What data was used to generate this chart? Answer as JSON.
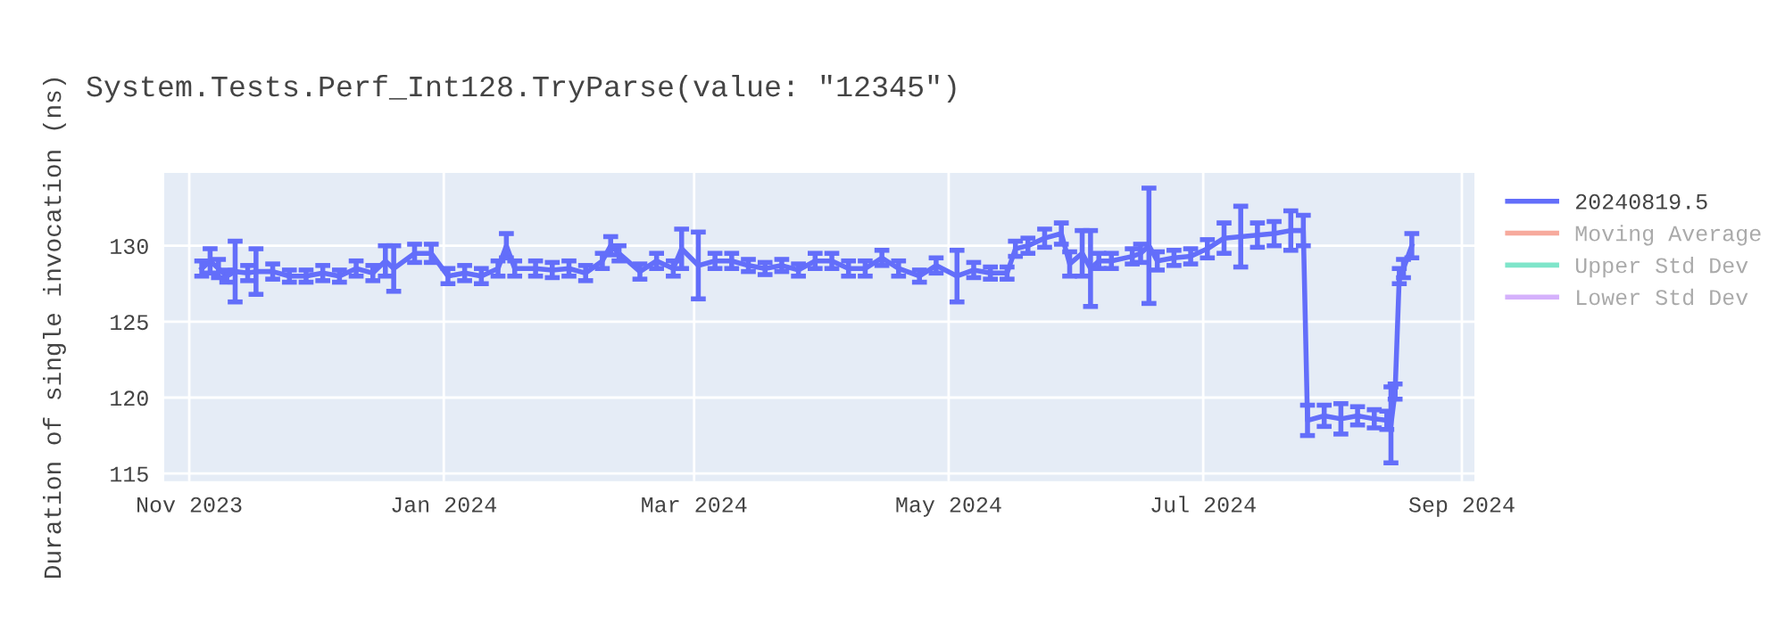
{
  "chart_data": {
    "type": "line",
    "title": "System.Tests.Perf_Int128.TryParse(value: \"12345\")",
    "ylabel": "Duration of single invocation (ns)",
    "x": [
      "2023-11-04",
      "2023-11-06",
      "2023-11-08",
      "2023-11-10",
      "2023-11-12",
      "2023-11-15",
      "2023-11-17",
      "2023-11-21",
      "2023-11-25",
      "2023-11-29",
      "2023-12-03",
      "2023-12-07",
      "2023-12-11",
      "2023-12-15",
      "2023-12-18",
      "2023-12-20",
      "2023-12-25",
      "2023-12-29",
      "2024-01-02",
      "2024-01-06",
      "2024-01-10",
      "2024-01-14",
      "2024-01-16",
      "2024-01-18",
      "2024-01-23",
      "2024-01-27",
      "2024-01-31",
      "2024-02-04",
      "2024-02-08",
      "2024-02-10",
      "2024-02-12",
      "2024-02-17",
      "2024-02-21",
      "2024-02-25",
      "2024-02-27",
      "2024-03-02",
      "2024-03-06",
      "2024-03-10",
      "2024-03-14",
      "2024-03-18",
      "2024-03-22",
      "2024-03-26",
      "2024-03-30",
      "2024-04-03",
      "2024-04-07",
      "2024-04-11",
      "2024-04-15",
      "2024-04-19",
      "2024-04-24",
      "2024-04-28",
      "2024-05-03",
      "2024-05-07",
      "2024-05-11",
      "2024-05-15",
      "2024-05-17",
      "2024-05-20",
      "2024-05-24",
      "2024-05-28",
      "2024-05-30",
      "2024-06-02",
      "2024-06-04",
      "2024-06-06",
      "2024-06-09",
      "2024-06-14",
      "2024-06-16",
      "2024-06-18",
      "2024-06-20",
      "2024-06-24",
      "2024-06-28",
      "2024-07-02",
      "2024-07-06",
      "2024-07-10",
      "2024-07-14",
      "2024-07-18",
      "2024-07-22",
      "2024-07-25",
      "2024-07-26",
      "2024-07-30",
      "2024-08-03",
      "2024-08-07",
      "2024-08-11",
      "2024-08-14",
      "2024-08-15",
      "2024-08-16",
      "2024-08-17",
      "2024-08-18",
      "2024-08-20"
    ],
    "series": [
      {
        "name": "20240819.5",
        "color": "#636efa",
        "values": [
          128.5,
          129,
          128.5,
          128,
          128.3,
          128.2,
          128.3,
          128.3,
          128,
          128,
          128.2,
          128,
          128.5,
          128.2,
          129,
          128.5,
          129.5,
          129.5,
          128,
          128.2,
          128,
          128.5,
          130,
          128.5,
          128.5,
          128.4,
          128.5,
          128.2,
          129,
          130,
          129.5,
          128.3,
          129,
          128.5,
          129.8,
          128.7,
          129,
          129,
          128.7,
          128.5,
          128.7,
          128.4,
          129,
          129,
          128.5,
          128.5,
          129.2,
          128.5,
          128,
          128.7,
          128,
          128.4,
          128.2,
          128.2,
          129.8,
          130,
          130.5,
          130.8,
          128.8,
          129.5,
          128.5,
          129,
          129,
          129.3,
          129.5,
          130,
          129,
          129.2,
          129.3,
          129.8,
          130.5,
          130.6,
          130.7,
          130.8,
          131,
          131,
          118.5,
          118.8,
          118.6,
          118.8,
          118.6,
          118.5,
          118.2,
          120.4,
          128,
          128.5,
          130
        ],
        "errors": [
          0.5,
          0.8,
          0.6,
          0.4,
          2.0,
          0.5,
          1.5,
          0.5,
          0.4,
          0.4,
          0.5,
          0.4,
          0.5,
          0.5,
          1.0,
          1.5,
          0.6,
          0.6,
          0.5,
          0.5,
          0.5,
          0.5,
          0.8,
          0.5,
          0.5,
          0.5,
          0.5,
          0.5,
          0.5,
          0.6,
          0.5,
          0.5,
          0.5,
          0.5,
          1.3,
          2.2,
          0.5,
          0.5,
          0.4,
          0.4,
          0.4,
          0.4,
          0.5,
          0.5,
          0.5,
          0.5,
          0.5,
          0.5,
          0.4,
          0.5,
          1.7,
          0.5,
          0.4,
          0.4,
          0.5,
          0.5,
          0.6,
          0.7,
          0.8,
          1.5,
          2.5,
          0.5,
          0.5,
          0.5,
          0.6,
          3.8,
          0.6,
          0.5,
          0.5,
          0.6,
          1.0,
          2.0,
          0.8,
          0.8,
          1.3,
          1.0,
          1.0,
          0.7,
          1.0,
          0.6,
          0.6,
          0.6,
          2.5,
          0.5,
          0.5,
          0.6,
          0.8
        ]
      },
      {
        "name": "Moving Average",
        "color": "#ef553b",
        "values": [
          null,
          null,
          null,
          null,
          null,
          null,
          null,
          null,
          null,
          null,
          null,
          null,
          null,
          null,
          null,
          null,
          null,
          null,
          null,
          null,
          null,
          null,
          null,
          null,
          null,
          null,
          null,
          null,
          null,
          null,
          null,
          null,
          null,
          null,
          null,
          null,
          null,
          null,
          null,
          null,
          null,
          null,
          null,
          null,
          null,
          null,
          null,
          null,
          null,
          null,
          null,
          null,
          null,
          null,
          null,
          null,
          null,
          null,
          null,
          null,
          null,
          null,
          null,
          null,
          null,
          null,
          null,
          null,
          null,
          null,
          null,
          null,
          null,
          null,
          null,
          null,
          null,
          null,
          null,
          null,
          null,
          null,
          null,
          null,
          null,
          null,
          null
        ]
      },
      {
        "name": "Upper Std Dev",
        "color": "#00cc96",
        "values": [
          null,
          null,
          null,
          null,
          null,
          null,
          null,
          null,
          null,
          null,
          null,
          null,
          null,
          null,
          null,
          null,
          null,
          null,
          null,
          null,
          null,
          null,
          null,
          null,
          null,
          null,
          null,
          null,
          null,
          null,
          null,
          null,
          null,
          null,
          null,
          null,
          null,
          null,
          null,
          null,
          null,
          null,
          null,
          null,
          null,
          null,
          null,
          null,
          null,
          null,
          null,
          null,
          null,
          null,
          null,
          null,
          null,
          null,
          null,
          null,
          null,
          null,
          null,
          null,
          null,
          null,
          null,
          null,
          null,
          null,
          null,
          null,
          null,
          null,
          null,
          null,
          null,
          null,
          null,
          null,
          null,
          null,
          null,
          null,
          null,
          null,
          null
        ]
      },
      {
        "name": "Lower Std Dev",
        "color": "#ab63fa",
        "values": [
          null,
          null,
          null,
          null,
          null,
          null,
          null,
          null,
          null,
          null,
          null,
          null,
          null,
          null,
          null,
          null,
          null,
          null,
          null,
          null,
          null,
          null,
          null,
          null,
          null,
          null,
          null,
          null,
          null,
          null,
          null,
          null,
          null,
          null,
          null,
          null,
          null,
          null,
          null,
          null,
          null,
          null,
          null,
          null,
          null,
          null,
          null,
          null,
          null,
          null,
          null,
          null,
          null,
          null,
          null,
          null,
          null,
          null,
          null,
          null,
          null,
          null,
          null,
          null,
          null,
          null,
          null,
          null,
          null,
          null,
          null,
          null,
          null,
          null,
          null,
          null,
          null,
          null,
          null,
          null,
          null,
          null,
          null,
          null,
          null,
          null,
          null
        ]
      }
    ],
    "xlim": [
      "2023-10-26",
      "2024-09-04"
    ],
    "ylim": [
      114.5,
      134.8
    ],
    "xticks": [
      {
        "value": "2023-11-01",
        "label": "Nov 2023"
      },
      {
        "value": "2024-01-01",
        "label": "Jan 2024"
      },
      {
        "value": "2024-03-01",
        "label": "Mar 2024"
      },
      {
        "value": "2024-05-01",
        "label": "May 2024"
      },
      {
        "value": "2024-07-01",
        "label": "Jul 2024"
      },
      {
        "value": "2024-09-01",
        "label": "Sep 2024"
      }
    ],
    "yticks": [
      115,
      120,
      125,
      130
    ],
    "grid": true,
    "legend": "right"
  }
}
